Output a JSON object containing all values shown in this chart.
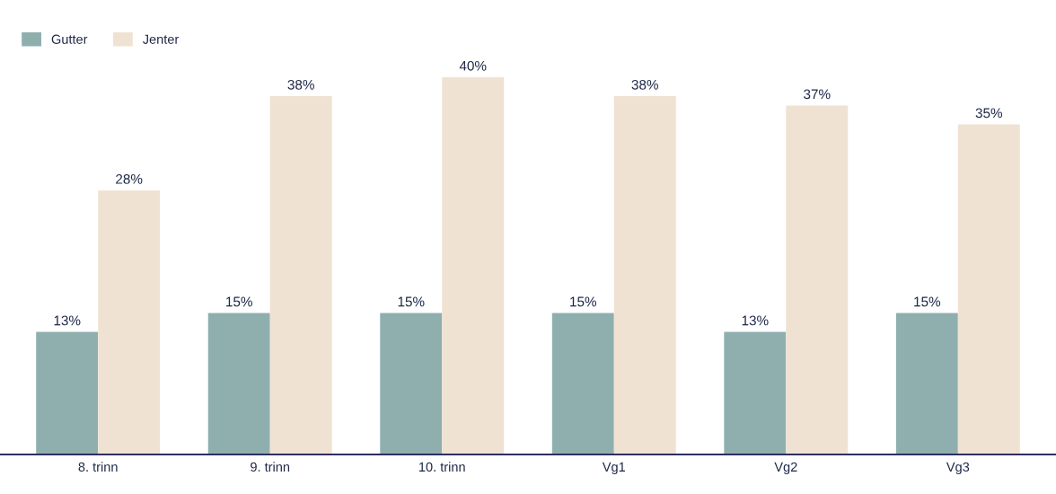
{
  "chart_data": {
    "type": "bar",
    "categories": [
      "8. trinn",
      "9. trinn",
      "10. trinn",
      "Vg1",
      "Vg2",
      "Vg3"
    ],
    "series": [
      {
        "name": "Gutter",
        "color": "#8fafaf",
        "values": [
          13,
          15,
          15,
          15,
          13,
          15
        ],
        "value_labels": [
          "13%",
          "15%",
          "15%",
          "15%",
          "13%",
          "15%"
        ]
      },
      {
        "name": "Jenter",
        "color": "#f0e2d2",
        "values": [
          28,
          38,
          40,
          38,
          37,
          35
        ],
        "value_labels": [
          "28%",
          "38%",
          "40%",
          "38%",
          "37%",
          "35%"
        ]
      }
    ],
    "tick_labels": "x",
    "grid": false,
    "legend": "top left"
  }
}
